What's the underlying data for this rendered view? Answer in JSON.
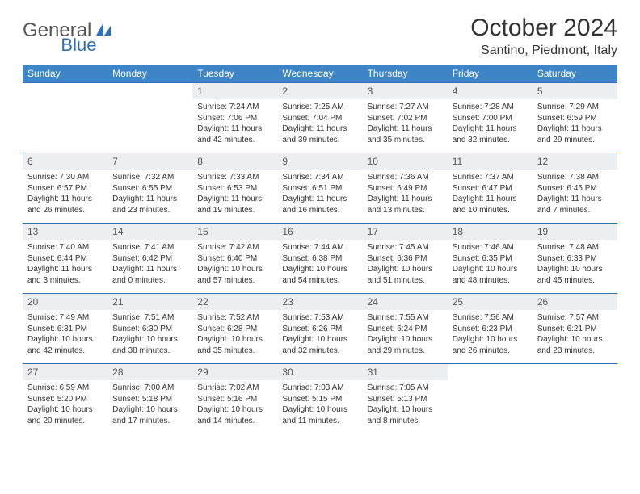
{
  "logo": {
    "text1": "General",
    "text2": "Blue"
  },
  "title": "October 2024",
  "location": "Santino, Piedmont, Italy",
  "colors": {
    "header_bg": "#3d85c6",
    "header_text": "#ffffff",
    "daynum_bg": "#eceff1",
    "border": "#2e6fb7",
    "logo_gray": "#555555",
    "logo_blue": "#2e6fb7"
  },
  "weekdays": [
    "Sunday",
    "Monday",
    "Tuesday",
    "Wednesday",
    "Thursday",
    "Friday",
    "Saturday"
  ],
  "weeks": [
    [
      null,
      null,
      {
        "d": "1",
        "sr": "7:24 AM",
        "ss": "7:06 PM",
        "dl": "11 hours and 42 minutes."
      },
      {
        "d": "2",
        "sr": "7:25 AM",
        "ss": "7:04 PM",
        "dl": "11 hours and 39 minutes."
      },
      {
        "d": "3",
        "sr": "7:27 AM",
        "ss": "7:02 PM",
        "dl": "11 hours and 35 minutes."
      },
      {
        "d": "4",
        "sr": "7:28 AM",
        "ss": "7:00 PM",
        "dl": "11 hours and 32 minutes."
      },
      {
        "d": "5",
        "sr": "7:29 AM",
        "ss": "6:59 PM",
        "dl": "11 hours and 29 minutes."
      }
    ],
    [
      {
        "d": "6",
        "sr": "7:30 AM",
        "ss": "6:57 PM",
        "dl": "11 hours and 26 minutes."
      },
      {
        "d": "7",
        "sr": "7:32 AM",
        "ss": "6:55 PM",
        "dl": "11 hours and 23 minutes."
      },
      {
        "d": "8",
        "sr": "7:33 AM",
        "ss": "6:53 PM",
        "dl": "11 hours and 19 minutes."
      },
      {
        "d": "9",
        "sr": "7:34 AM",
        "ss": "6:51 PM",
        "dl": "11 hours and 16 minutes."
      },
      {
        "d": "10",
        "sr": "7:36 AM",
        "ss": "6:49 PM",
        "dl": "11 hours and 13 minutes."
      },
      {
        "d": "11",
        "sr": "7:37 AM",
        "ss": "6:47 PM",
        "dl": "11 hours and 10 minutes."
      },
      {
        "d": "12",
        "sr": "7:38 AM",
        "ss": "6:45 PM",
        "dl": "11 hours and 7 minutes."
      }
    ],
    [
      {
        "d": "13",
        "sr": "7:40 AM",
        "ss": "6:44 PM",
        "dl": "11 hours and 3 minutes."
      },
      {
        "d": "14",
        "sr": "7:41 AM",
        "ss": "6:42 PM",
        "dl": "11 hours and 0 minutes."
      },
      {
        "d": "15",
        "sr": "7:42 AM",
        "ss": "6:40 PM",
        "dl": "10 hours and 57 minutes."
      },
      {
        "d": "16",
        "sr": "7:44 AM",
        "ss": "6:38 PM",
        "dl": "10 hours and 54 minutes."
      },
      {
        "d": "17",
        "sr": "7:45 AM",
        "ss": "6:36 PM",
        "dl": "10 hours and 51 minutes."
      },
      {
        "d": "18",
        "sr": "7:46 AM",
        "ss": "6:35 PM",
        "dl": "10 hours and 48 minutes."
      },
      {
        "d": "19",
        "sr": "7:48 AM",
        "ss": "6:33 PM",
        "dl": "10 hours and 45 minutes."
      }
    ],
    [
      {
        "d": "20",
        "sr": "7:49 AM",
        "ss": "6:31 PM",
        "dl": "10 hours and 42 minutes."
      },
      {
        "d": "21",
        "sr": "7:51 AM",
        "ss": "6:30 PM",
        "dl": "10 hours and 38 minutes."
      },
      {
        "d": "22",
        "sr": "7:52 AM",
        "ss": "6:28 PM",
        "dl": "10 hours and 35 minutes."
      },
      {
        "d": "23",
        "sr": "7:53 AM",
        "ss": "6:26 PM",
        "dl": "10 hours and 32 minutes."
      },
      {
        "d": "24",
        "sr": "7:55 AM",
        "ss": "6:24 PM",
        "dl": "10 hours and 29 minutes."
      },
      {
        "d": "25",
        "sr": "7:56 AM",
        "ss": "6:23 PM",
        "dl": "10 hours and 26 minutes."
      },
      {
        "d": "26",
        "sr": "7:57 AM",
        "ss": "6:21 PM",
        "dl": "10 hours and 23 minutes."
      }
    ],
    [
      {
        "d": "27",
        "sr": "6:59 AM",
        "ss": "5:20 PM",
        "dl": "10 hours and 20 minutes."
      },
      {
        "d": "28",
        "sr": "7:00 AM",
        "ss": "5:18 PM",
        "dl": "10 hours and 17 minutes."
      },
      {
        "d": "29",
        "sr": "7:02 AM",
        "ss": "5:16 PM",
        "dl": "10 hours and 14 minutes."
      },
      {
        "d": "30",
        "sr": "7:03 AM",
        "ss": "5:15 PM",
        "dl": "10 hours and 11 minutes."
      },
      {
        "d": "31",
        "sr": "7:05 AM",
        "ss": "5:13 PM",
        "dl": "10 hours and 8 minutes."
      },
      null,
      null
    ]
  ],
  "labels": {
    "sunrise": "Sunrise:",
    "sunset": "Sunset:",
    "daylight": "Daylight:"
  }
}
